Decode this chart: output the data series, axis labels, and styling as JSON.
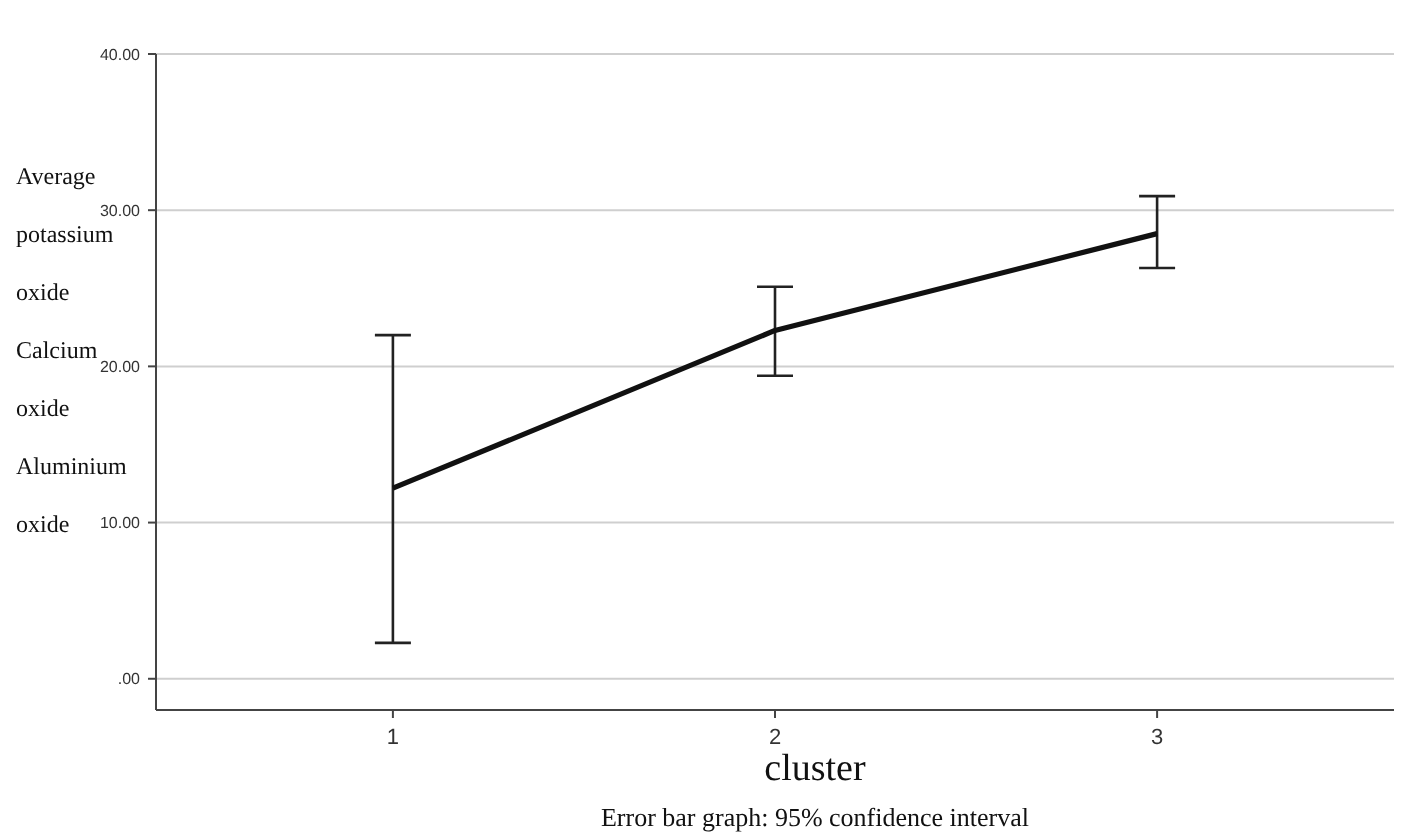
{
  "chart_data": {
    "type": "line",
    "xlabel": "cluster",
    "ylabel": "Average potassium oxide Calcium oxide Aluminium oxide",
    "categories": [
      "1",
      "2",
      "3"
    ],
    "series": [
      {
        "color": "#111111",
        "values": [
          12.2,
          22.3,
          28.5
        ],
        "errors": [
          [
            2.3,
            22.0
          ],
          [
            19.4,
            25.1
          ],
          [
            26.3,
            30.9
          ]
        ]
      }
    ],
    "ylim": [
      -2,
      40
    ],
    "yticks": [
      {
        "value": 0,
        "label": ".00"
      },
      {
        "value": 10,
        "label": "10.00"
      },
      {
        "value": 20,
        "label": "20.00"
      },
      {
        "value": 30,
        "label": "30.00"
      },
      {
        "value": 40,
        "label": "40.00"
      }
    ],
    "grid": "y",
    "marker": "none",
    "line_style": "solid",
    "annotations": [
      "Error bar graph: 95% confidence interval"
    ]
  }
}
